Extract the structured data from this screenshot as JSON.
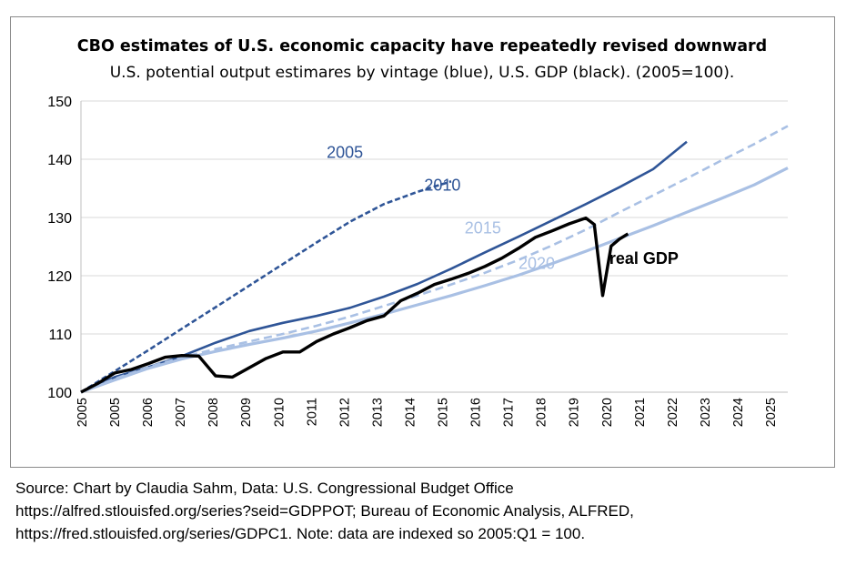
{
  "chart_data": {
    "type": "line",
    "title": "CBO estimates of U.S. economic capacity have repeatedly revised downward",
    "subtitle": "U.S. potential output estimares by vintage (blue), U.S. GDP (black). (2005=100).",
    "xlabel": "",
    "ylabel": "",
    "xlim": [
      2005,
      2026
    ],
    "ylim": [
      100,
      150
    ],
    "y_ticks": [
      100,
      110,
      120,
      130,
      140,
      150
    ],
    "x_tick_labels": [
      "2005",
      "2005",
      "2006",
      "2007",
      "2008",
      "2009",
      "2010",
      "2011",
      "2012",
      "2013",
      "2014",
      "2015",
      "2016",
      "2017",
      "2018",
      "2019",
      "2020",
      "2021",
      "2022",
      "2023",
      "2024",
      "2025"
    ],
    "grid": "horizontal",
    "series": [
      {
        "name": "2005",
        "color": "#2F5597",
        "style": "dashed",
        "x": [
          2005.0,
          2006.0,
          2007.0,
          2008.0,
          2009.0,
          2010.0,
          2011.0,
          2012.0,
          2013.0,
          2014.0,
          2015.0,
          2016.0
        ],
        "y": [
          100.0,
          103.6,
          107.2,
          110.9,
          114.6,
          118.3,
          122.0,
          125.7,
          129.3,
          132.3,
          134.4,
          136.2
        ]
      },
      {
        "name": "2010",
        "color": "#2F5597",
        "style": "solid",
        "x": [
          2005.0,
          2006.0,
          2007.0,
          2008.0,
          2009.0,
          2010.0,
          2011.0,
          2012.0,
          2013.0,
          2014.0,
          2015.0,
          2016.0,
          2017.0,
          2018.0,
          2019.0,
          2020.0,
          2021.0,
          2022.0,
          2023.0
        ],
        "y": [
          100.0,
          102.6,
          104.3,
          106.2,
          108.5,
          110.5,
          111.9,
          113.1,
          114.5,
          116.4,
          118.6,
          121.2,
          124.0,
          126.7,
          129.5,
          132.3,
          135.2,
          138.3,
          143.0
        ]
      },
      {
        "name": "2015",
        "color": "#A9C0E4",
        "style": "dashed",
        "x": [
          2005.0,
          2006.0,
          2007.0,
          2008.0,
          2009.0,
          2010.0,
          2011.0,
          2012.0,
          2013.0,
          2014.0,
          2015.0,
          2016.0,
          2017.0,
          2018.0,
          2019.0,
          2020.0,
          2021.0,
          2022.0,
          2023.0,
          2024.0,
          2025.0,
          2026.0
        ],
        "y": [
          100.0,
          102.3,
          104.3,
          106.0,
          107.4,
          108.7,
          110.0,
          111.4,
          113.0,
          114.8,
          116.6,
          118.5,
          120.5,
          122.7,
          125.2,
          127.9,
          130.9,
          133.8,
          136.7,
          139.7,
          142.6,
          145.7
        ]
      },
      {
        "name": "2020",
        "color": "#A9C0E4",
        "style": "solid",
        "x": [
          2005.0,
          2006.0,
          2007.0,
          2008.0,
          2009.0,
          2010.0,
          2011.0,
          2012.0,
          2013.0,
          2014.0,
          2015.0,
          2016.0,
          2017.0,
          2018.0,
          2019.0,
          2020.0,
          2021.0,
          2022.0,
          2023.0,
          2024.0,
          2025.0,
          2026.0
        ],
        "y": [
          100.0,
          102.1,
          104.1,
          105.7,
          107.0,
          108.2,
          109.3,
          110.5,
          111.9,
          113.4,
          115.0,
          116.6,
          118.3,
          120.1,
          122.1,
          124.2,
          126.4,
          128.6,
          130.9,
          133.2,
          135.6,
          138.5
        ]
      },
      {
        "name": "real GDP",
        "color": "#000000",
        "style": "solid",
        "x": [
          2005.0,
          2005.5,
          2006.0,
          2006.5,
          2007.0,
          2007.5,
          2008.0,
          2008.5,
          2009.0,
          2009.5,
          2010.0,
          2010.5,
          2011.0,
          2011.5,
          2012.0,
          2012.5,
          2013.0,
          2013.5,
          2014.0,
          2014.5,
          2015.0,
          2015.5,
          2016.0,
          2016.5,
          2017.0,
          2017.5,
          2018.0,
          2018.5,
          2019.0,
          2019.5,
          2020.0,
          2020.25,
          2020.5,
          2020.75,
          2021.0,
          2021.25
        ],
        "y": [
          100.0,
          101.5,
          103.3,
          103.9,
          104.9,
          106.0,
          106.3,
          106.2,
          102.8,
          102.6,
          104.2,
          105.8,
          106.9,
          106.9,
          108.7,
          110.0,
          111.1,
          112.3,
          113.1,
          115.7,
          117.0,
          118.5,
          119.4,
          120.4,
          121.6,
          123.0,
          124.7,
          126.6,
          127.7,
          128.9,
          129.9,
          128.8,
          116.6,
          125.1,
          126.3,
          127.2
        ]
      }
    ]
  },
  "annotations": [
    {
      "text": "2005",
      "x": 2012.3,
      "y": 140.2,
      "color": "#2F5597"
    },
    {
      "text": "2010",
      "x": 2015.2,
      "y": 134.6,
      "color": "#2F5597"
    },
    {
      "text": "2015",
      "x": 2016.4,
      "y": 127.3,
      "color": "#A9C0E4"
    },
    {
      "text": "2020",
      "x": 2018.0,
      "y": 121.2,
      "color": "#A9C0E4"
    },
    {
      "text": "real GDP",
      "x": 2020.7,
      "y": 122.0,
      "color": "#000000",
      "bold": true
    }
  ],
  "source_note": {
    "line1": "Source: Chart by Claudia Sahm, Data: U.S. Congressional Budget Office",
    "line2": "https://alfred.stlouisfed.org/series?seid=GDPPOT; Bureau of Economic Analysis, ALFRED,",
    "line3": "https://fred.stlouisfed.org/series/GDPC1. Note: data are indexed so 2005:Q1 = 100."
  }
}
